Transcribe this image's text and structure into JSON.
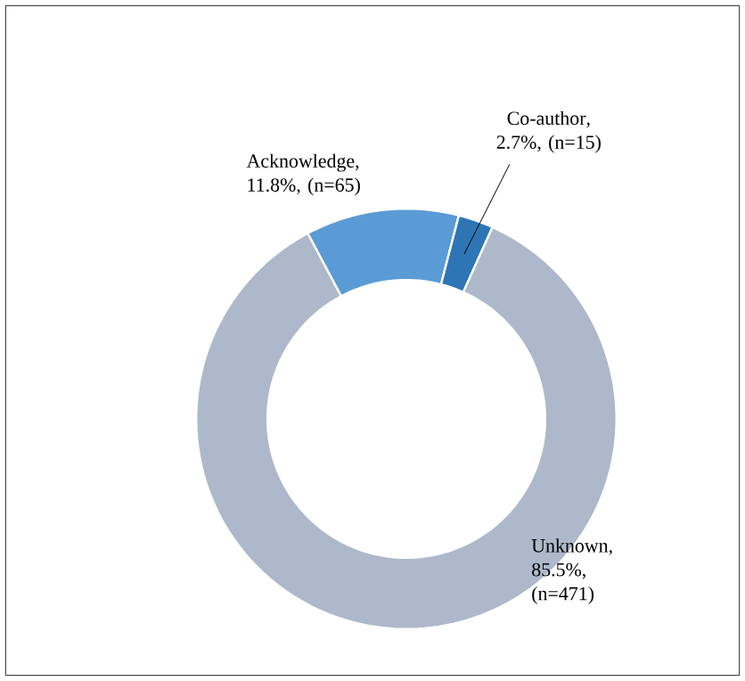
{
  "chart_data": {
    "type": "donut",
    "categories": [
      "Acknowledge",
      "Co-author",
      "Unknown"
    ],
    "values": [
      11.8,
      2.7,
      85.5
    ],
    "value_labels": [
      ", 11.8%, (n=65)",
      ", 2.7%, (n=15)",
      ", 85.5%, (n=471)"
    ],
    "colors": [
      "#5b9bd5",
      "#2e75b6",
      "#adb9ca"
    ]
  }
}
